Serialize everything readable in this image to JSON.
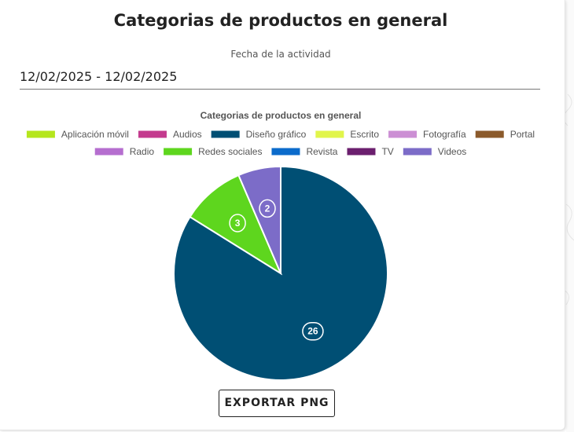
{
  "page": {
    "title": "Categorias de productos en general",
    "date_label": "Fecha de la actividad",
    "date_value": "12/02/2025 - 12/02/2025",
    "export_label": "EXPORTAR PNG"
  },
  "chart_data": {
    "type": "pie",
    "title": "Categorias de productos en general",
    "legend_position": "top",
    "categories": [
      "Aplicación móvil",
      "Audios",
      "Diseño gráfico",
      "Escrito",
      "Fotografía",
      "Portal",
      "Radio",
      "Redes sociales",
      "Revista",
      "TV",
      "Videos"
    ],
    "colors": [
      "#b5e61d",
      "#c43b8e",
      "#004f74",
      "#e1f54b",
      "#cc8fd4",
      "#8b5a2b",
      "#b56ecf",
      "#5ed61e",
      "#0b6bcb",
      "#6b1f6e",
      "#7c6cc8"
    ],
    "values": [
      0,
      0,
      26,
      0,
      0,
      0,
      0,
      3,
      0,
      0,
      2
    ]
  }
}
